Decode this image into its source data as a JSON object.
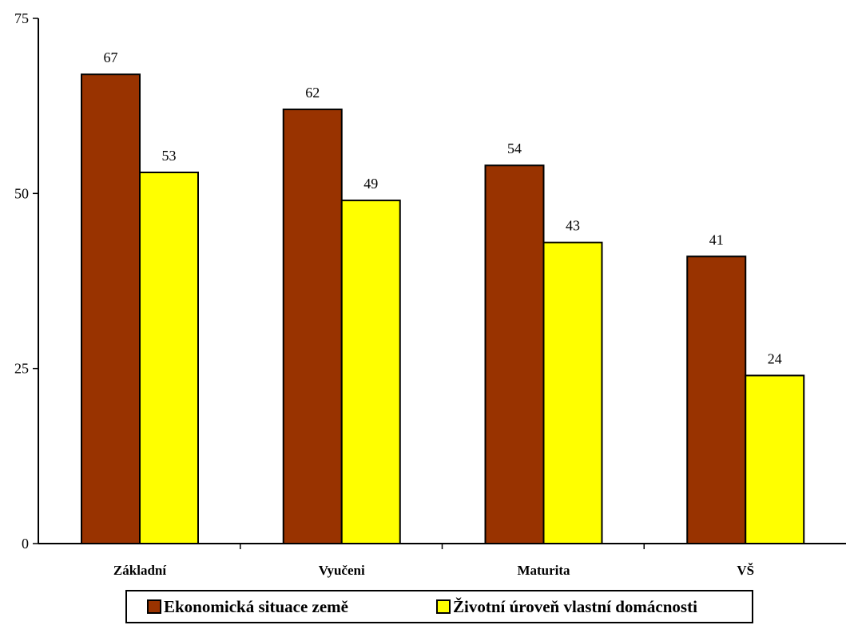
{
  "chart_data": {
    "type": "bar",
    "title": "",
    "xlabel": "",
    "ylabel": "",
    "categories": [
      "Základní",
      "Vyučeni",
      "Maturita",
      "VŠ"
    ],
    "series": [
      {
        "name": "Ekonomická situace země",
        "color": "#993300",
        "values": [
          67,
          62,
          54,
          41
        ]
      },
      {
        "name": "Životní úroveň vlastní domácnosti",
        "color": "#FFFF00",
        "values": [
          53,
          49,
          43,
          24
        ]
      }
    ],
    "ylim": [
      0,
      75
    ],
    "yticks": [
      0,
      25,
      50,
      75
    ],
    "grid": false,
    "legend_position": "bottom"
  }
}
